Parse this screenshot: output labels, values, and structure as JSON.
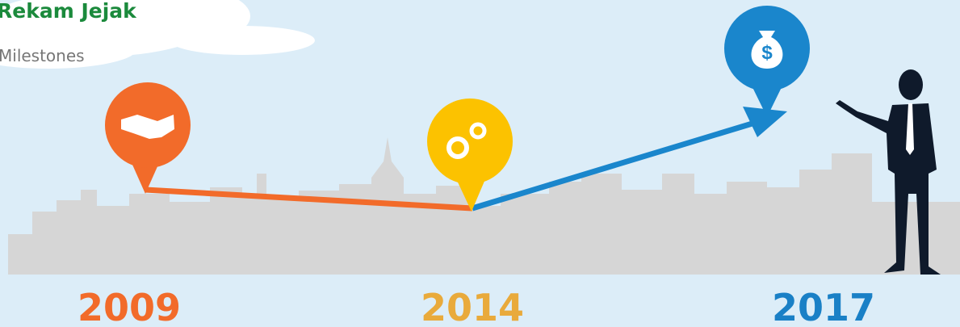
{
  "header": {
    "title": "Rekam Jejak",
    "subtitle": "Milestones"
  },
  "milestones": [
    {
      "year": "2009"
    },
    {
      "year": "2014"
    },
    {
      "year": "2017"
    }
  ]
}
